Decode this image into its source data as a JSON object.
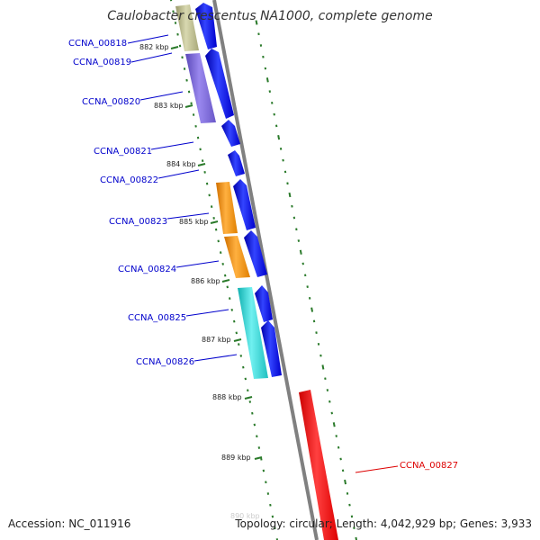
{
  "title": "Caulobacter crescentus NA1000, complete genome",
  "footer": {
    "accession": "Accession: NC_011916",
    "info": "Topology: circular; Length: 4,042,929 bp; Genes: 3,933"
  },
  "colors": {
    "forward_gene": "#0000ee",
    "label_blue": "#0000cc",
    "label_red": "#dd0000",
    "backbone": "#888888",
    "tick_green": "#2a7a2a"
  },
  "kbp_labels": [
    "882 kbp",
    "883 kbp",
    "884 kbp",
    "885 kbp",
    "886 kbp",
    "887 kbp",
    "888 kbp",
    "889 kbp"
  ],
  "gene_labels": [
    {
      "text": "CCNA_00818",
      "color": "blue"
    },
    {
      "text": "CCNA_00819",
      "color": "blue"
    },
    {
      "text": "CCNA_00820",
      "color": "blue"
    },
    {
      "text": "CCNA_00821",
      "color": "blue"
    },
    {
      "text": "CCNA_00822",
      "color": "blue"
    },
    {
      "text": "CCNA_00823",
      "color": "blue"
    },
    {
      "text": "CCNA_00824",
      "color": "blue"
    },
    {
      "text": "CCNA_00825",
      "color": "blue"
    },
    {
      "text": "CCNA_00826",
      "color": "blue"
    },
    {
      "text": "CCNA_00827",
      "color": "red"
    }
  ],
  "cog_colors": [
    "#b8b88a",
    "#7b68d6",
    "#f08c00",
    "#f08c00",
    "#30d0d0",
    "#ee0000"
  ]
}
